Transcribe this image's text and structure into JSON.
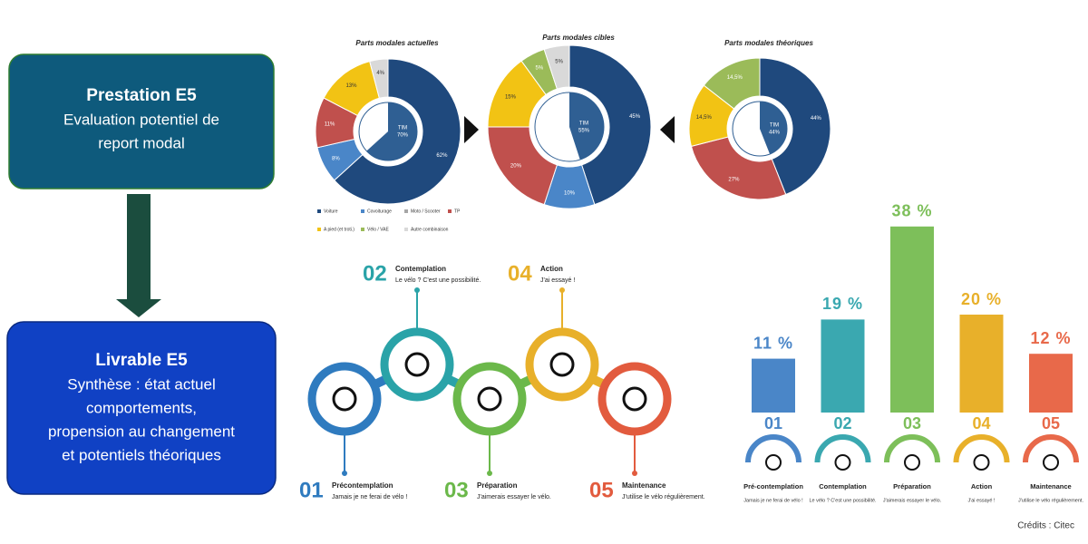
{
  "boxes": [
    {
      "title": "Prestation E5",
      "lines": [
        "Evaluation potentiel de",
        "report modal"
      ]
    },
    {
      "title": "Livrable E5",
      "lines": [
        "Synthèse : état actuel",
        "comportements,",
        "propension au changement",
        "et potentiels théoriques"
      ]
    }
  ],
  "chart_data": [
    {
      "type": "donut",
      "title": "Parts modales actuelles",
      "center_label": "TIM",
      "center_value_label": "70%",
      "categories": [
        "Voiture",
        "Covoiturage",
        "TP",
        "A pied (et troti.)",
        "Autre combinaison"
      ],
      "values": [
        62,
        8,
        11,
        13,
        4
      ],
      "value_labels": [
        "62%",
        "8%",
        "11%",
        "13%",
        "4%"
      ],
      "colors": [
        "#1f497d",
        "#4a86c8",
        "#c0504d",
        "#f2c314",
        "#d9d9d9"
      ],
      "legend": [
        {
          "name": "Voiture",
          "color": "#1f497d"
        },
        {
          "name": "Covoiturage",
          "color": "#4a86c8"
        },
        {
          "name": "Moto / Scooter",
          "color": "#a6a6a6"
        },
        {
          "name": "TP",
          "color": "#c0504d"
        },
        {
          "name": "A pied (et troti.)",
          "color": "#f2c314"
        },
        {
          "name": "Vélo / VAE",
          "color": "#9bbb59"
        },
        {
          "name": "Autre combinaison",
          "color": "#d9d9d9"
        }
      ]
    },
    {
      "type": "donut",
      "title": "Parts modales cibles",
      "center_label": "TIM",
      "center_value_label": "55%",
      "categories": [
        "Voiture",
        "Covoiturage",
        "TP",
        "A pied (et troti.)",
        "Vélo / VAE",
        "Autre combinaison"
      ],
      "values": [
        45,
        10,
        20,
        15,
        5,
        5
      ],
      "value_labels": [
        "45%",
        "10%",
        "20%",
        "15%",
        "5%",
        "5%"
      ],
      "colors": [
        "#1f497d",
        "#4a86c8",
        "#c0504d",
        "#f2c314",
        "#9bbb59",
        "#d9d9d9"
      ]
    },
    {
      "type": "donut",
      "title": "Parts modales théoriques",
      "center_label": "TIM",
      "center_value_label": "44%",
      "categories": [
        "Voiture",
        "TP",
        "A pied (et troti.)",
        "Vélo / VAE"
      ],
      "values": [
        44,
        27,
        14.5,
        14.5
      ],
      "value_labels": [
        "44%",
        "27%",
        "14,5%",
        "14,5%"
      ],
      "colors": [
        "#1f497d",
        "#c0504d",
        "#f2c314",
        "#9bbb59"
      ]
    },
    {
      "type": "bar",
      "categories": [
        "01",
        "02",
        "03",
        "04",
        "05"
      ],
      "names": [
        "Pré-contemplation",
        "Contemplation",
        "Préparation",
        "Action",
        "Maintenance"
      ],
      "quotes": [
        "Jamais je ne ferai de vélo !",
        "Le vélo ? C'est une possibilité.",
        "J'aimerais essayer le vélo.",
        "J'ai essayé !",
        "J'utilise le vélo régulièrement."
      ],
      "values": [
        11,
        19,
        38,
        20,
        12
      ],
      "value_labels": [
        "11 %",
        "19 %",
        "38 %",
        "20 %",
        "12 %"
      ],
      "colors": [
        "#4a86c8",
        "#3aa8b0",
        "#7dbf5a",
        "#e8b02a",
        "#e8694a"
      ]
    }
  ],
  "stages": [
    {
      "number": "01",
      "title": "Précontemplation",
      "quote": "Jamais je ne ferai de vélo !"
    },
    {
      "number": "02",
      "title": "Contemplation",
      "quote": "Le vélo ? C'est une possibilité."
    },
    {
      "number": "03",
      "title": "Préparation",
      "quote": "J'aimerais essayer le vélo."
    },
    {
      "number": "04",
      "title": "Action",
      "quote": "J'ai essayé !"
    },
    {
      "number": "05",
      "title": "Maintenance",
      "quote": "J'utilise le vélo régulièrement."
    }
  ],
  "credits": "Crédits : Citec"
}
